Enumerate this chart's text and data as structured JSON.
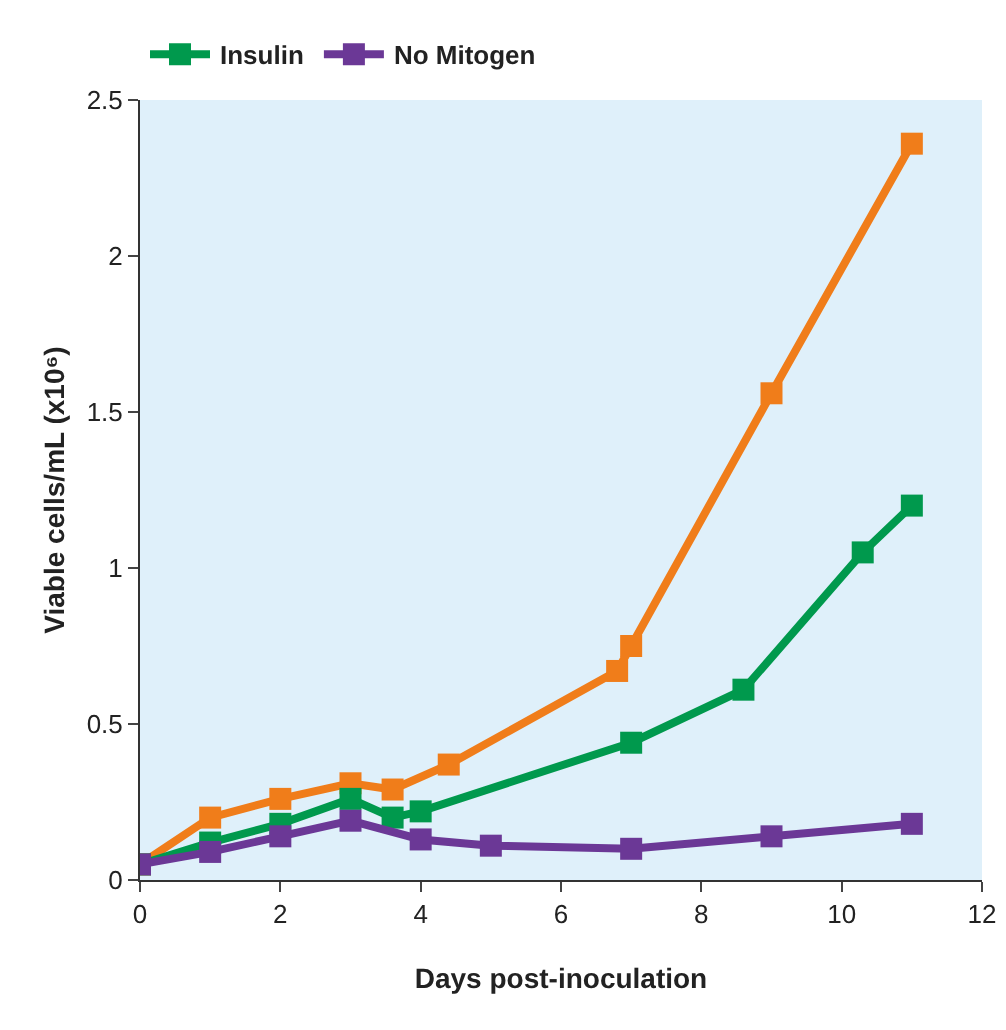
{
  "chart_data": {
    "type": "line",
    "xlabel": "Days post-inoculation",
    "ylabel": "Viable cells/mL (x10⁶)",
    "xlim": [
      0,
      12
    ],
    "xticks": [
      0,
      2,
      4,
      6,
      8,
      10,
      12
    ],
    "ylim": [
      0,
      2.5
    ],
    "yticks": [
      0,
      0.5,
      1,
      1.5,
      2,
      2.5
    ],
    "grid": false,
    "legend": "top",
    "marker": "square",
    "line_style": "solid",
    "series": [
      {
        "color": "#f07d1a",
        "x": [
          0,
          1,
          2,
          3,
          3.6,
          4.4,
          6.8,
          7,
          9,
          11
        ],
        "values": [
          0.05,
          0.2,
          0.26,
          0.31,
          0.29,
          0.37,
          0.67,
          0.75,
          1.56,
          2.36
        ]
      },
      {
        "name": "Insulin",
        "color": "#00994d",
        "x": [
          0,
          1,
          2,
          3,
          3.6,
          4,
          7,
          8.6,
          10.3,
          11
        ],
        "values": [
          0.05,
          0.12,
          0.18,
          0.26,
          0.2,
          0.22,
          0.44,
          0.61,
          1.05,
          1.2
        ]
      },
      {
        "name": "No Mitogen",
        "color": "#6b3896",
        "x": [
          0,
          1,
          2,
          3,
          4,
          5,
          7,
          9,
          11
        ],
        "values": [
          0.05,
          0.09,
          0.14,
          0.19,
          0.13,
          0.11,
          0.1,
          0.14,
          0.18
        ]
      }
    ]
  }
}
